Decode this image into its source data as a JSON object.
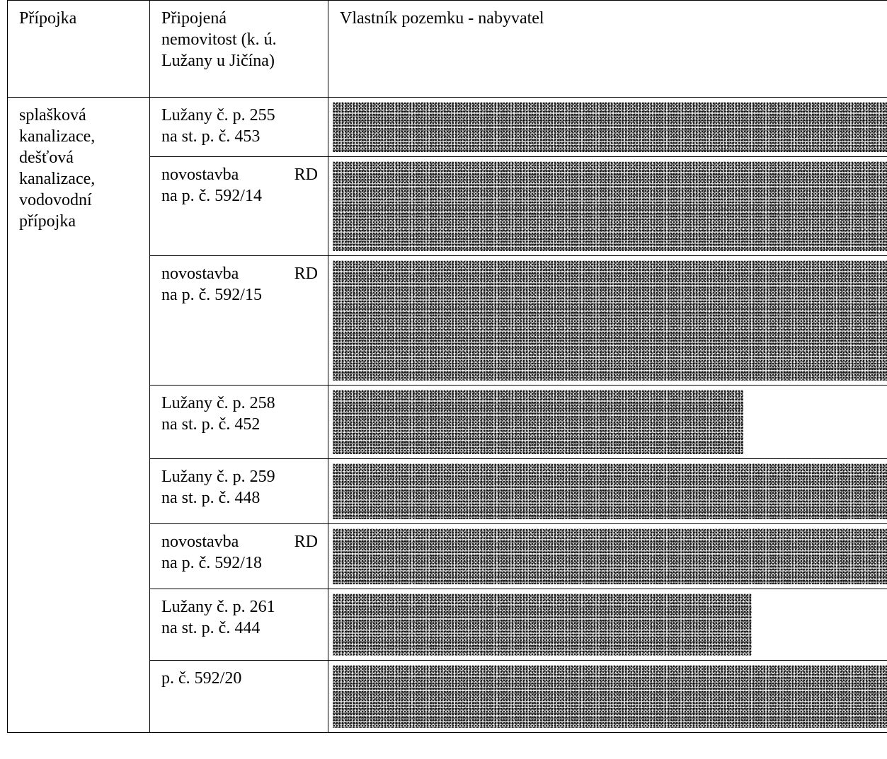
{
  "header": {
    "col1": "Přípojka",
    "col2_lines": [
      "Připojená",
      "nemovitost (k. ú.",
      "Lužany u Jičína)"
    ],
    "col3": "Vlastník pozemku - nabyvatel"
  },
  "utility_lines": [
    "splašková",
    "kanalizace,",
    "dešťová",
    "kanalizace,",
    "vodovodní",
    "přípojka"
  ],
  "rows": [
    {
      "line1": "Lužany č. p. 255",
      "line2": "na st. p. č. 453"
    },
    {
      "line1a": "novostavba",
      "line1b": "RD",
      "line2": "na p. č. 592/14"
    },
    {
      "line1a": "novostavba",
      "line1b": "RD",
      "line2": "na p. č. 592/15"
    },
    {
      "line1": "Lužany č. p. 258",
      "line2": "na st. p. č. 452"
    },
    {
      "line1": "Lužany č. p. 259",
      "line2": "na st. p. č. 448"
    },
    {
      "line1a": "novostavba",
      "line1b": "RD",
      "line2": "na p. č. 592/18"
    },
    {
      "line1": "Lužany č. p. 261",
      "line2": "na st. p. č. 444"
    },
    {
      "line1": "p. č. 592/20",
      "line2": ""
    }
  ]
}
